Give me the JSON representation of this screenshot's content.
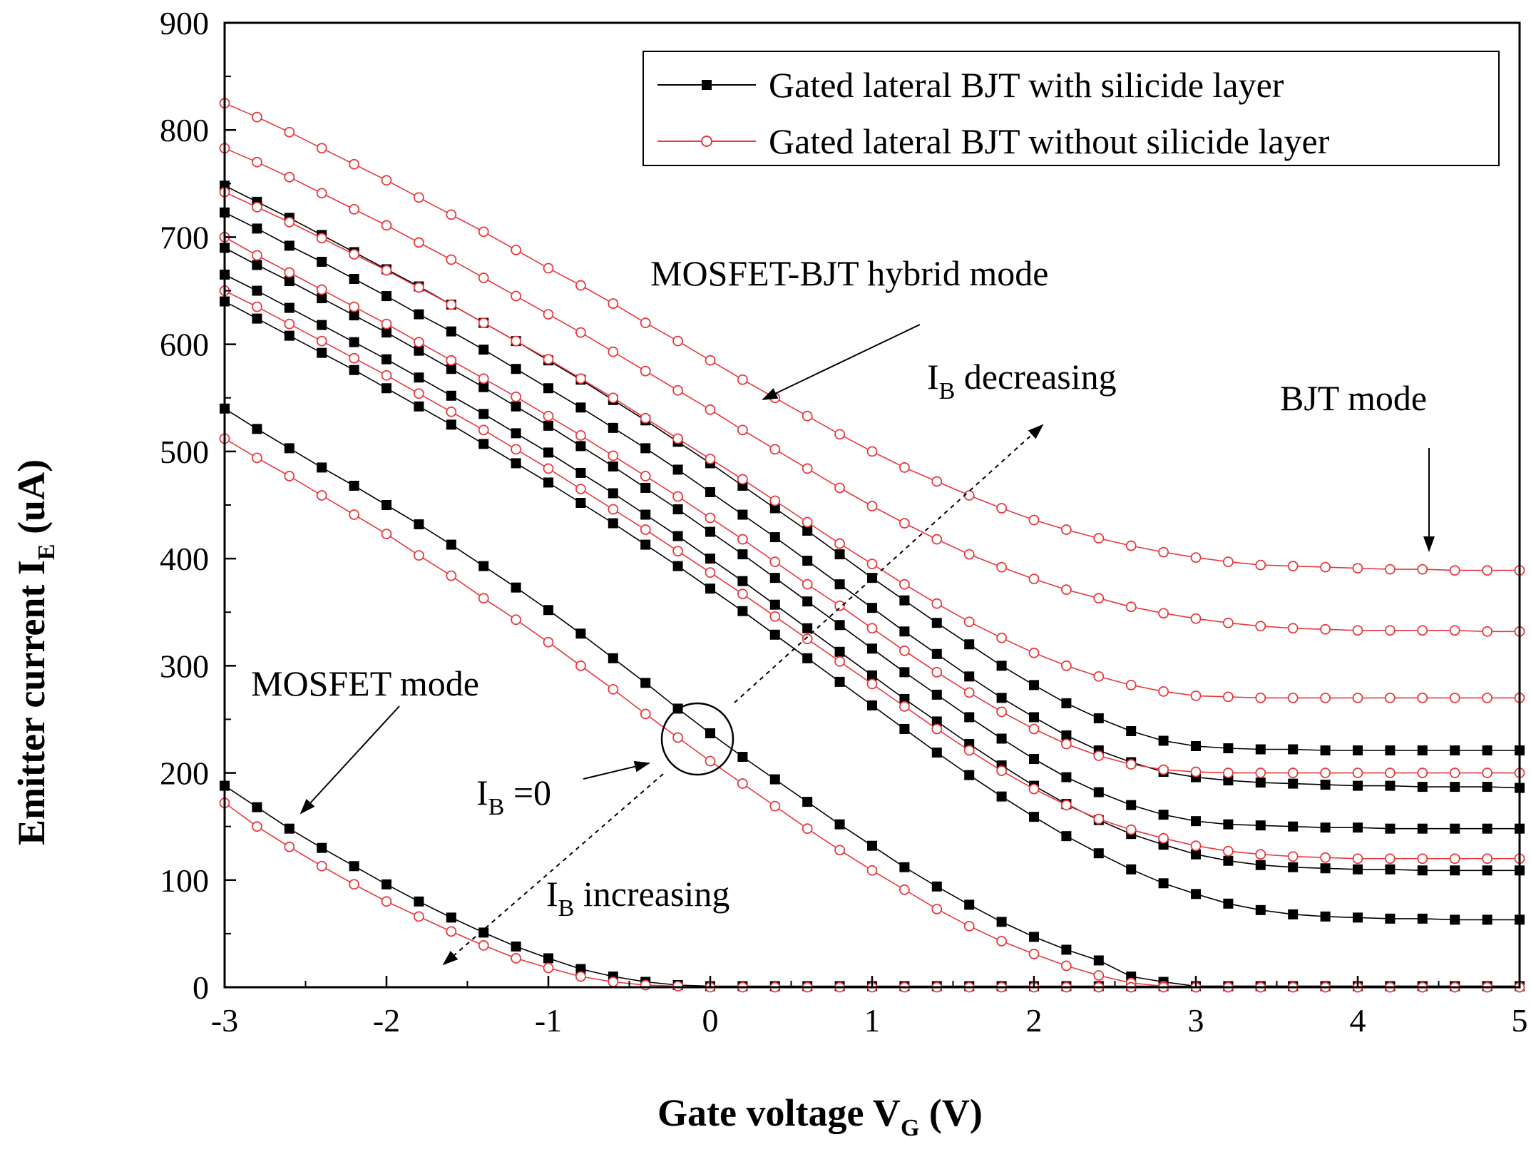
{
  "chart_data": {
    "type": "line",
    "title": "",
    "xlabel": {
      "main": "Gate voltage V",
      "sub": "G",
      "unit": " (V)"
    },
    "ylabel": {
      "main": "Emitter current I",
      "sub": "E",
      "unit": " (uA)"
    },
    "xlim": [
      -3,
      5
    ],
    "ylim": [
      0,
      900
    ],
    "x_ticks": [
      -3,
      -2,
      -1,
      0,
      1,
      2,
      3,
      4,
      5
    ],
    "x_tick_labels": [
      "-3",
      "-2",
      "-1",
      "0",
      "1",
      "2",
      "3",
      "4",
      "5"
    ],
    "y_ticks": [
      0,
      100,
      200,
      300,
      400,
      500,
      600,
      700,
      800,
      900
    ],
    "y_tick_labels": [
      "0",
      "100",
      "200",
      "300",
      "400",
      "500",
      "600",
      "700",
      "800",
      "900"
    ],
    "grid": false,
    "legend_position": "top-right",
    "legend": [
      {
        "name": "Gated lateral BJT with silicide layer",
        "color": "#000000",
        "marker": "filled-square"
      },
      {
        "name": "Gated lateral BJT without silicide layer",
        "color": "#e8383d",
        "marker": "open-circle"
      }
    ],
    "x": [
      -3.0,
      -2.8,
      -2.6,
      -2.4,
      -2.2,
      -2.0,
      -1.8,
      -1.6,
      -1.4,
      -1.2,
      -1.0,
      -0.8,
      -0.6,
      -0.4,
      -0.2,
      0.0,
      0.2,
      0.4,
      0.6,
      0.8,
      1.0,
      1.2,
      1.4,
      1.6,
      1.8,
      2.0,
      2.2,
      2.4,
      2.6,
      2.8,
      3.0,
      3.2,
      3.4,
      3.6,
      3.8,
      4.0,
      4.2,
      4.4,
      4.6,
      4.8,
      5.0
    ],
    "series": [
      {
        "name": "with silicide, IB step 1",
        "group": "with",
        "values": [
          748,
          733,
          718,
          702,
          686,
          670,
          654,
          637,
          620,
          603,
          585,
          567,
          548,
          529,
          509,
          489,
          468,
          447,
          426,
          404,
          382,
          361,
          340,
          320,
          300,
          282,
          265,
          251,
          239,
          230,
          225,
          223,
          222,
          222,
          221,
          221,
          221,
          221,
          221,
          221,
          221
        ]
      },
      {
        "name": "with silicide, IB step 2",
        "group": "with",
        "values": [
          723,
          708,
          692,
          677,
          661,
          645,
          628,
          612,
          595,
          577,
          559,
          541,
          522,
          503,
          483,
          462,
          441,
          420,
          398,
          376,
          354,
          332,
          311,
          290,
          270,
          252,
          235,
          221,
          210,
          201,
          196,
          193,
          191,
          190,
          189,
          188,
          188,
          187,
          187,
          187,
          186
        ]
      },
      {
        "name": "with silicide, IB step 3",
        "group": "with",
        "values": [
          690,
          674,
          659,
          643,
          627,
          611,
          594,
          577,
          560,
          542,
          524,
          505,
          486,
          466,
          446,
          425,
          404,
          382,
          360,
          338,
          316,
          294,
          273,
          252,
          232,
          213,
          196,
          182,
          170,
          161,
          155,
          152,
          151,
          150,
          149,
          149,
          148,
          148,
          148,
          148,
          148
        ]
      },
      {
        "name": "with silicide, IB step 4",
        "group": "with",
        "values": [
          665,
          650,
          634,
          618,
          602,
          586,
          569,
          552,
          535,
          517,
          499,
          480,
          461,
          441,
          421,
          400,
          379,
          357,
          335,
          313,
          291,
          269,
          248,
          227,
          207,
          188,
          171,
          156,
          143,
          133,
          124,
          118,
          114,
          112,
          111,
          110,
          110,
          109,
          109,
          109,
          109
        ]
      },
      {
        "name": "with silicide, IB step 5",
        "group": "with",
        "values": [
          640,
          624,
          608,
          592,
          576,
          559,
          542,
          525,
          507,
          489,
          471,
          452,
          433,
          413,
          393,
          372,
          351,
          329,
          307,
          285,
          263,
          241,
          219,
          198,
          178,
          159,
          141,
          125,
          110,
          97,
          87,
          78,
          72,
          68,
          66,
          65,
          64,
          64,
          63,
          63,
          63
        ]
      },
      {
        "name": "with silicide, IB = 0",
        "group": "with",
        "values": [
          540,
          521,
          503,
          485,
          468,
          450,
          432,
          413,
          393,
          373,
          352,
          330,
          307,
          284,
          260,
          237,
          215,
          194,
          173,
          152,
          132,
          112,
          94,
          77,
          61,
          47,
          35,
          25,
          10,
          5,
          1,
          1,
          1,
          1,
          1,
          1,
          1,
          1,
          1,
          1,
          1
        ]
      },
      {
        "name": "with silicide, IB increasing",
        "group": "with",
        "values": [
          188,
          168,
          148,
          130,
          113,
          96,
          80,
          65,
          51,
          38,
          27,
          17,
          10,
          5,
          2,
          1,
          1,
          1,
          1,
          1,
          1,
          1,
          1,
          1,
          1,
          1,
          1,
          1,
          1,
          1,
          1,
          1,
          1,
          1,
          1,
          1,
          1,
          1,
          1,
          1,
          1
        ]
      },
      {
        "name": "without silicide, IB step 1",
        "group": "without",
        "values": [
          825,
          812,
          798,
          783,
          768,
          753,
          737,
          721,
          705,
          688,
          671,
          655,
          638,
          620,
          603,
          585,
          567,
          550,
          533,
          516,
          500,
          485,
          472,
          459,
          447,
          436,
          427,
          419,
          412,
          406,
          401,
          397,
          394,
          393,
          392,
          391,
          390,
          390,
          389,
          389,
          389
        ]
      },
      {
        "name": "without silicide, IB step 2",
        "group": "without",
        "values": [
          783,
          770,
          756,
          741,
          726,
          711,
          695,
          679,
          662,
          645,
          628,
          611,
          593,
          575,
          557,
          539,
          520,
          502,
          484,
          466,
          449,
          433,
          418,
          404,
          392,
          381,
          371,
          363,
          355,
          349,
          344,
          340,
          337,
          335,
          334,
          333,
          333,
          333,
          333,
          332,
          332
        ]
      },
      {
        "name": "without silicide, IB step 3",
        "group": "without",
        "values": [
          742,
          728,
          714,
          699,
          684,
          669,
          653,
          637,
          620,
          603,
          586,
          568,
          550,
          531,
          512,
          493,
          474,
          454,
          434,
          414,
          395,
          376,
          358,
          341,
          326,
          312,
          300,
          290,
          282,
          276,
          272,
          271,
          270,
          270,
          270,
          270,
          270,
          270,
          270,
          270,
          270
        ]
      },
      {
        "name": "without silicide, IB step 4",
        "group": "without",
        "values": [
          700,
          683,
          667,
          651,
          635,
          619,
          602,
          585,
          568,
          551,
          533,
          515,
          496,
          477,
          458,
          438,
          418,
          397,
          376,
          356,
          335,
          314,
          294,
          275,
          257,
          241,
          227,
          216,
          208,
          203,
          201,
          200,
          200,
          200,
          200,
          200,
          200,
          200,
          200,
          200,
          200
        ]
      },
      {
        "name": "without silicide, IB step 5",
        "group": "without",
        "values": [
          650,
          635,
          619,
          603,
          587,
          571,
          554,
          537,
          520,
          502,
          484,
          465,
          446,
          427,
          407,
          387,
          367,
          346,
          325,
          304,
          283,
          262,
          241,
          221,
          202,
          185,
          170,
          157,
          147,
          139,
          132,
          127,
          124,
          122,
          121,
          120,
          120,
          120,
          120,
          120,
          120
        ]
      },
      {
        "name": "without silicide, IB = 0",
        "group": "without",
        "values": [
          512,
          494,
          477,
          459,
          441,
          423,
          403,
          384,
          363,
          343,
          322,
          300,
          278,
          255,
          233,
          211,
          190,
          169,
          148,
          128,
          109,
          91,
          73,
          57,
          43,
          31,
          20,
          11,
          4,
          1,
          0,
          0,
          0,
          0,
          0,
          0,
          0,
          0,
          0,
          0,
          0
        ]
      },
      {
        "name": "without silicide, IB increasing",
        "group": "without",
        "values": [
          172,
          150,
          131,
          113,
          96,
          80,
          66,
          52,
          39,
          27,
          18,
          10,
          5,
          2,
          1,
          0,
          0,
          0,
          0,
          0,
          0,
          0,
          0,
          0,
          0,
          0,
          0,
          0,
          0,
          0,
          0,
          0,
          0,
          0,
          0,
          0,
          0,
          0,
          0,
          0,
          0
        ]
      }
    ],
    "annotations": {
      "hybrid": "MOSFET-BJT hybrid mode",
      "ib_decreasing_main": "I",
      "ib_decreasing_sub": "B",
      "ib_decreasing_rest": " decreasing",
      "bjt": "BJT mode",
      "mosfet": "MOSFET mode",
      "ib_zero_main": "I",
      "ib_zero_sub": "B",
      "ib_zero_rest": " =0",
      "ib_increasing_main": "I",
      "ib_increasing_sub": "B",
      "ib_increasing_rest": " increasing"
    },
    "colors": {
      "with": "#000000",
      "without": "#e8383d",
      "axis": "#000000"
    }
  }
}
